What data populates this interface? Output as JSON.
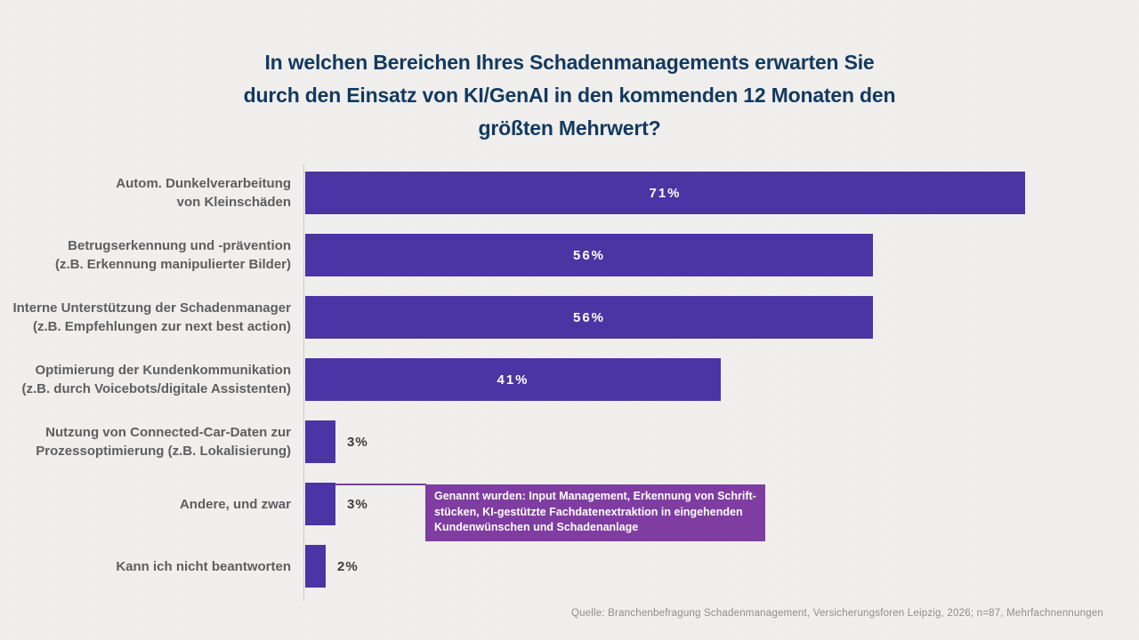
{
  "title": {
    "lines": [
      "In welchen Bereichen Ihres Schadenmanagements erwarten Sie",
      "durch den Einsatz von KI/GenAI in den kommenden 12 Monaten den",
      "größten Mehrwert?"
    ]
  },
  "chart_data": {
    "type": "bar",
    "orientation": "horizontal",
    "unit": "%",
    "xlim": [
      0,
      100
    ],
    "grid": false,
    "legend": false,
    "categories": [
      "Autom. Dunkelverarbeitung von Kleinschäden",
      "Betrugserkennung und -prävention (z.B. Erkennung manipulierter Bilder)",
      "Interne Unterstützung der Schadenmanager (z.B. Empfehlungen zur next best action)",
      "Optimierung der Kundenkommunikation (z.B. durch Voicebots/digitale Assistenten)",
      "Nutzung von Connected-Car-Daten zur Prozessoptimierung (z.B. Lokalisierung)",
      "Andere, und zwar",
      "Kann ich nicht beantworten"
    ],
    "category_lines": [
      [
        "Autom. Dunkelverarbeitung",
        "von Kleinschäden"
      ],
      [
        "Betrugserkennung und -prävention",
        "(z.B. Erkennung manipulierter Bilder)"
      ],
      [
        "Interne Unterstützung der Schadenmanager",
        "(z.B. Empfehlungen zur next best action)"
      ],
      [
        "Optimierung der Kundenkommunikation",
        "(z.B. durch Voicebots/digitale Assistenten)"
      ],
      [
        "Nutzung von Connected-Car-Daten zur",
        "Prozessoptimierung (z.B. Lokalisierung)"
      ],
      [
        "Andere, und zwar"
      ],
      [
        "Kann ich nicht beantworten"
      ]
    ],
    "values": [
      71,
      56,
      56,
      41,
      3,
      3,
      2
    ],
    "value_labels": [
      "71%",
      "56%",
      "56%",
      "41%",
      "3%",
      "3%",
      "2%"
    ]
  },
  "annotation": {
    "attached_to": "Andere, und zwar",
    "lines": [
      "Genannt wurden: Input Management, Erkennung von Schrift-",
      "stücken, KI-gestützte Fachdatenextraktion in eingehenden",
      "Kundenwünschen und Schadenanlage"
    ]
  },
  "source": "Quelle: Branchenbefragung Schadenmanagement, Versicherungsforen Leipzig, 2026; n=87, Mehrfachnennungen",
  "colors": {
    "bar": "#4b34a3",
    "annotation_bg": "#7f3da2",
    "title": "#13395f",
    "category_label": "#5e5e60",
    "value_inside": "#ffffff",
    "value_outside": "#3d3d3d",
    "axis_line": "#c9c9c7",
    "background": "#f1f0ee",
    "source": "#8e8e8e"
  }
}
